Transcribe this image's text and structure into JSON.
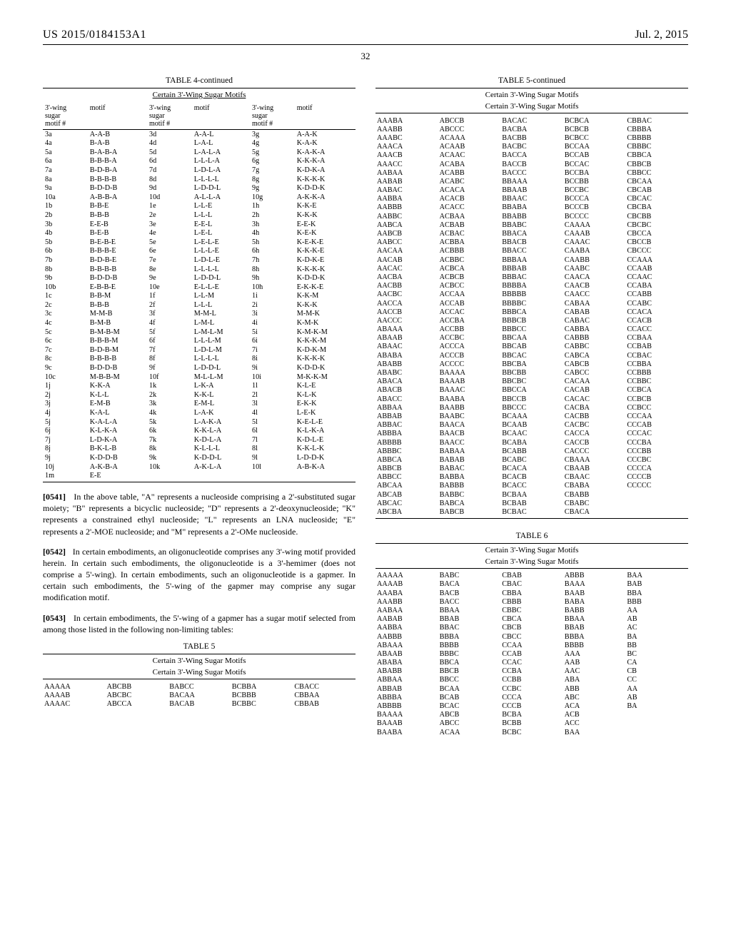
{
  "header": {
    "doc_id": "US 2015/0184153A1",
    "date": "Jul. 2, 2015",
    "page": "32"
  },
  "table4": {
    "title": "TABLE 4-continued",
    "subtitle": "Certain 3'-Wing Sugar Motifs",
    "hdr": {
      "c1": "3'-wing\nsugar\nmotif #",
      "c2": "motif",
      "c3": "3'-wing\nsugar\nmotif #",
      "c4": "motif",
      "c5": "3'-wing\nsugar\nmotif #",
      "c6": "motif"
    },
    "rows": [
      [
        "3a",
        "A-A-B",
        "3d",
        "A-A-L",
        "3g",
        "A-A-K"
      ],
      [
        "4a",
        "B-A-B",
        "4d",
        "L-A-L",
        "4g",
        "K-A-K"
      ],
      [
        "5a",
        "B-A-B-A",
        "5d",
        "L-A-L-A",
        "5g",
        "K-A-K-A"
      ],
      [
        "6a",
        "B-B-B-A",
        "6d",
        "L-L-L-A",
        "6g",
        "K-K-K-A"
      ],
      [
        "7a",
        "B-D-B-A",
        "7d",
        "L-D-L-A",
        "7g",
        "K-D-K-A"
      ],
      [
        "8a",
        "B-B-B-B",
        "8d",
        "L-L-L-L",
        "8g",
        "K-K-K-K"
      ],
      [
        "9a",
        "B-D-D-B",
        "9d",
        "L-D-D-L",
        "9g",
        "K-D-D-K"
      ],
      [
        "10a",
        "A-B-B-A",
        "10d",
        "A-L-L-A",
        "10g",
        "A-K-K-A"
      ],
      [
        "1b",
        "B-B-E",
        "1e",
        "L-L-E",
        "1h",
        "K-K-E"
      ],
      [
        "2b",
        "B-B-B",
        "2e",
        "L-L-L",
        "2h",
        "K-K-K"
      ],
      [
        "3b",
        "E-E-B",
        "3e",
        "E-E-L",
        "3h",
        "E-E-K"
      ],
      [
        "4b",
        "B-E-B",
        "4e",
        "L-E-L",
        "4h",
        "K-E-K"
      ],
      [
        "5b",
        "B-E-B-E",
        "5e",
        "L-E-L-E",
        "5h",
        "K-E-K-E"
      ],
      [
        "6b",
        "B-B-B-E",
        "6e",
        "L-L-L-E",
        "6h",
        "K-K-K-E"
      ],
      [
        "7b",
        "B-D-B-E",
        "7e",
        "L-D-L-E",
        "7h",
        "K-D-K-E"
      ],
      [
        "8b",
        "B-B-B-B",
        "8e",
        "L-L-L-L",
        "8h",
        "K-K-K-K"
      ],
      [
        "9b",
        "B-D-D-B",
        "9e",
        "L-D-D-L",
        "9h",
        "K-D-D-K"
      ],
      [
        "10b",
        "E-B-B-E",
        "10e",
        "E-L-L-E",
        "10h",
        "E-K-K-E"
      ],
      [
        "1c",
        "B-B-M",
        "1f",
        "L-L-M",
        "1i",
        "K-K-M"
      ],
      [
        "2c",
        "B-B-B",
        "2f",
        "L-L-L",
        "2i",
        "K-K-K"
      ],
      [
        "3c",
        "M-M-B",
        "3f",
        "M-M-L",
        "3i",
        "M-M-K"
      ],
      [
        "4c",
        "B-M-B",
        "4f",
        "L-M-L",
        "4i",
        "K-M-K"
      ],
      [
        "5c",
        "B-M-B-M",
        "5f",
        "L-M-L-M",
        "5i",
        "K-M-K-M"
      ],
      [
        "6c",
        "B-B-B-M",
        "6f",
        "L-L-L-M",
        "6i",
        "K-K-K-M"
      ],
      [
        "7c",
        "B-D-B-M",
        "7f",
        "L-D-L-M",
        "7i",
        "K-D-K-M"
      ],
      [
        "8c",
        "B-B-B-B",
        "8f",
        "L-L-L-L",
        "8i",
        "K-K-K-K"
      ],
      [
        "9c",
        "B-D-D-B",
        "9f",
        "L-D-D-L",
        "9i",
        "K-D-D-K"
      ],
      [
        "10c",
        "M-B-B-M",
        "10f",
        "M-L-L-M",
        "10i",
        "M-K-K-M"
      ],
      [
        "1j",
        "K-K-A",
        "1k",
        "L-K-A",
        "1l",
        "K-L-E"
      ],
      [
        "2j",
        "K-L-L",
        "2k",
        "K-K-L",
        "2l",
        "K-L-K"
      ],
      [
        "3j",
        "E-M-B",
        "3k",
        "E-M-L",
        "3l",
        "E-K-K"
      ],
      [
        "4j",
        "K-A-L",
        "4k",
        "L-A-K",
        "4l",
        "L-E-K"
      ],
      [
        "5j",
        "K-A-L-A",
        "5k",
        "L-A-K-A",
        "5l",
        "K-E-L-E"
      ],
      [
        "6j",
        "K-L-K-A",
        "6k",
        "K-K-L-A",
        "6l",
        "K-L-K-A"
      ],
      [
        "7j",
        "L-D-K-A",
        "7k",
        "K-D-L-A",
        "7l",
        "K-D-L-E"
      ],
      [
        "8j",
        "B-K-L-B",
        "8k",
        "K-L-L-L",
        "8l",
        "K-K-L-K"
      ],
      [
        "9j",
        "K-D-D-B",
        "9k",
        "K-D-D-L",
        "9l",
        "L-D-D-K"
      ],
      [
        "10j",
        "A-K-B-A",
        "10k",
        "A-K-L-A",
        "10l",
        "A-B-K-A"
      ],
      [
        "1m",
        "E-E",
        "",
        "",
        "",
        ""
      ]
    ]
  },
  "paras": {
    "p1_num": "[0541]",
    "p1": "In the above table, \"A\" represents a nucleoside comprising a 2'-substituted sugar moiety; \"B\" represents a bicyclic nucleoside; \"D\" represents a 2'-deoxynucleoside; \"K\" represents a constrained ethyl nucleoside; \"L\" represents an LNA nucleoside; \"E\" represents a 2'-MOE nucleoside; and \"M\" represents a 2'-OMe nucleoside.",
    "p2_num": "[0542]",
    "p2": "In certain embodiments, an oligonucleotide comprises any 3'-wing motif provided herein. In certain such embodiments, the oligonucleotide is a 3'-hemimer (does not comprise a 5'-wing). In certain embodiments, such an oligonucleotide is a gapmer. In certain such embodiments, the 5'-wing of the gapmer may comprise any sugar modification motif.",
    "p3_num": "[0543]",
    "p3": "In certain embodiments, the 5'-wing of a gapmer has a sugar motif selected from among those listed in the following non-limiting tables:"
  },
  "table5head": {
    "title": "TABLE 5",
    "sub1": "Certain 3'-Wing Sugar Motifs",
    "sub2": "Certain 3'-Wing Sugar Motifs",
    "rows": [
      [
        "AAAAA",
        "ABCBB",
        "BABCC",
        "BCBBA",
        "CBACC"
      ],
      [
        "AAAAB",
        "ABCBC",
        "BACAA",
        "BCBBB",
        "CBBAA"
      ],
      [
        "AAAAC",
        "ABCCA",
        "BACAB",
        "BCBBC",
        "CBBAB"
      ]
    ]
  },
  "table5cont": {
    "title": "TABLE 5-continued",
    "sub1": "Certain 3'-Wing Sugar Motifs",
    "sub2": "Certain 3'-Wing Sugar Motifs",
    "rows": [
      [
        "AAABA",
        "ABCCB",
        "BACAC",
        "BCBCA",
        "CBBAC"
      ],
      [
        "AAABB",
        "ABCCC",
        "BACBA",
        "BCBCB",
        "CBBBA"
      ],
      [
        "AAABC",
        "ACAAA",
        "BACBB",
        "BCBCC",
        "CBBBB"
      ],
      [
        "AAACA",
        "ACAAB",
        "BACBC",
        "BCCAA",
        "CBBBC"
      ],
      [
        "AAACB",
        "ACAAC",
        "BACCA",
        "BCCAB",
        "CBBCA"
      ],
      [
        "AAACC",
        "ACABA",
        "BACCB",
        "BCCAC",
        "CBBCB"
      ],
      [
        "AABAA",
        "ACABB",
        "BACCC",
        "BCCBA",
        "CBBCC"
      ],
      [
        "AABAB",
        "ACABC",
        "BBAAA",
        "BCCBB",
        "CBCAA"
      ],
      [
        "AABAC",
        "ACACA",
        "BBAAB",
        "BCCBC",
        "CBCAB"
      ],
      [
        "AABBA",
        "ACACB",
        "BBAAC",
        "BCCCA",
        "CBCAC"
      ],
      [
        "AABBB",
        "ACACC",
        "BBABA",
        "BCCCB",
        "CBCBA"
      ],
      [
        "AABBC",
        "ACBAA",
        "BBABB",
        "BCCCC",
        "CBCBB"
      ],
      [
        "AABCA",
        "ACBAB",
        "BBABC",
        "CAAAA",
        "CBCBC"
      ],
      [
        "AABCB",
        "ACBAC",
        "BBACA",
        "CAAAB",
        "CBCCA"
      ],
      [
        "AABCC",
        "ACBBA",
        "BBACB",
        "CAAAC",
        "CBCCB"
      ],
      [
        "AACAA",
        "ACBBB",
        "BBACC",
        "CAABA",
        "CBCCC"
      ],
      [
        "AACAB",
        "ACBBC",
        "BBBAA",
        "CAABB",
        "CCAAA"
      ],
      [
        "AACAC",
        "ACBCA",
        "BBBAB",
        "CAABC",
        "CCAAB"
      ],
      [
        "AACBA",
        "ACBCB",
        "BBBAC",
        "CAACA",
        "CCAAC"
      ],
      [
        "AACBB",
        "ACBCC",
        "BBBBA",
        "CAACB",
        "CCABA"
      ],
      [
        "AACBC",
        "ACCAA",
        "BBBBB",
        "CAACC",
        "CCABB"
      ],
      [
        "AACCA",
        "ACCAB",
        "BBBBC",
        "CABAA",
        "CCABC"
      ],
      [
        "AACCB",
        "ACCAC",
        "BBBCA",
        "CABAB",
        "CCACA"
      ],
      [
        "AACCC",
        "ACCBA",
        "BBBCB",
        "CABAC",
        "CCACB"
      ],
      [
        "ABAAA",
        "ACCBB",
        "BBBCC",
        "CABBA",
        "CCACC"
      ],
      [
        "ABAAB",
        "ACCBC",
        "BBCAA",
        "CABBB",
        "CCBAA"
      ],
      [
        "ABAAC",
        "ACCCA",
        "BBCAB",
        "CABBC",
        "CCBAB"
      ],
      [
        "ABABA",
        "ACCCB",
        "BBCAC",
        "CABCA",
        "CCBAC"
      ],
      [
        "ABABB",
        "ACCCC",
        "BBCBA",
        "CABCB",
        "CCBBA"
      ],
      [
        "ABABC",
        "BAAAA",
        "BBCBB",
        "CABCC",
        "CCBBB"
      ],
      [
        "ABACA",
        "BAAAB",
        "BBCBC",
        "CACAA",
        "CCBBC"
      ],
      [
        "ABACB",
        "BAAAC",
        "BBCCA",
        "CACAB",
        "CCBCA"
      ],
      [
        "ABACC",
        "BAABA",
        "BBCCB",
        "CACAC",
        "CCBCB"
      ],
      [
        "ABBAA",
        "BAABB",
        "BBCCC",
        "CACBA",
        "CCBCC"
      ],
      [
        "ABBAB",
        "BAABC",
        "BCAAA",
        "CACBB",
        "CCCAA"
      ],
      [
        "ABBAC",
        "BAACA",
        "BCAAB",
        "CACBC",
        "CCCAB"
      ],
      [
        "ABBBA",
        "BAACB",
        "BCAAC",
        "CACCA",
        "CCCAC"
      ],
      [
        "ABBBB",
        "BAACC",
        "BCABA",
        "CACCB",
        "CCCBA"
      ],
      [
        "ABBBC",
        "BABAA",
        "BCABB",
        "CACCC",
        "CCCBB"
      ],
      [
        "ABBCA",
        "BABAB",
        "BCABC",
        "CBAAA",
        "CCCBC"
      ],
      [
        "ABBCB",
        "BABAC",
        "BCACA",
        "CBAAB",
        "CCCCA"
      ],
      [
        "ABBCC",
        "BABBA",
        "BCACB",
        "CBAAC",
        "CCCCB"
      ],
      [
        "ABCAA",
        "BABBB",
        "BCACC",
        "CBABA",
        "CCCCC"
      ],
      [
        "ABCAB",
        "BABBC",
        "BCBAA",
        "CBABB",
        ""
      ],
      [
        "ABCAC",
        "BABCA",
        "BCBAB",
        "CBABC",
        ""
      ],
      [
        "ABCBA",
        "BABCB",
        "BCBAC",
        "CBACA",
        ""
      ]
    ]
  },
  "table6": {
    "title": "TABLE 6",
    "sub1": "Certain 3'-Wing Sugar Motifs",
    "sub2": "Certain 3'-Wing Sugar Motifs",
    "rows": [
      [
        "AAAAA",
        "BABC",
        "CBAB",
        "ABBB",
        "BAA"
      ],
      [
        "AAAAB",
        "BACA",
        "CBAC",
        "BAAA",
        "BAB"
      ],
      [
        "AAABA",
        "BACB",
        "CBBA",
        "BAAB",
        "BBA"
      ],
      [
        "AAABB",
        "BACC",
        "CBBB",
        "BABA",
        "BBB"
      ],
      [
        "AABAA",
        "BBAA",
        "CBBC",
        "BABB",
        "AA"
      ],
      [
        "AABAB",
        "BBAB",
        "CBCA",
        "BBAA",
        "AB"
      ],
      [
        "AABBA",
        "BBAC",
        "CBCB",
        "BBAB",
        "AC"
      ],
      [
        "AABBB",
        "BBBA",
        "CBCC",
        "BBBA",
        "BA"
      ],
      [
        "ABAAA",
        "BBBB",
        "CCAA",
        "BBBB",
        "BB"
      ],
      [
        "ABAAB",
        "BBBC",
        "CCAB",
        "AAA",
        "BC"
      ],
      [
        "ABABA",
        "BBCA",
        "CCAC",
        "AAB",
        "CA"
      ],
      [
        "ABABB",
        "BBCB",
        "CCBA",
        "AAC",
        "CB"
      ],
      [
        "ABBAA",
        "BBCC",
        "CCBB",
        "ABA",
        "CC"
      ],
      [
        "ABBAB",
        "BCAA",
        "CCBC",
        "ABB",
        "AA"
      ],
      [
        "ABBBA",
        "BCAB",
        "CCCA",
        "ABC",
        "AB"
      ],
      [
        "ABBBB",
        "BCAC",
        "CCCB",
        "ACA",
        "BA"
      ],
      [
        "BAAAA",
        "ABCB",
        "BCBA",
        "ACB",
        ""
      ],
      [
        "BAAAB",
        "ABCC",
        "BCBB",
        "ACC",
        ""
      ],
      [
        "BAABA",
        "ACAA",
        "BCBC",
        "BAA",
        ""
      ]
    ]
  }
}
